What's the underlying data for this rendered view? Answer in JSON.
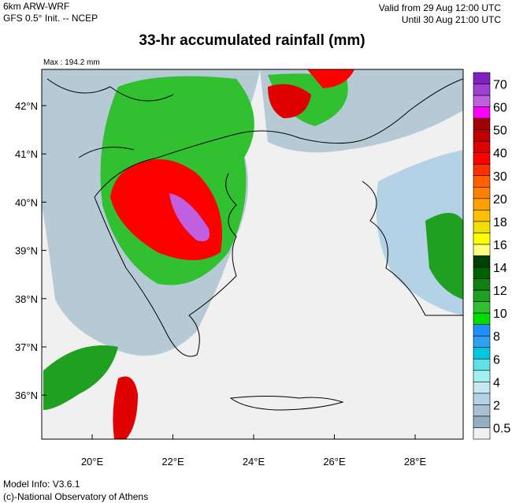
{
  "header": {
    "model": "6km ARW-WRF",
    "init": "GFS 0.5° Init. -- NCEP",
    "valid_from": "Valid from 29 Aug 12:00 UTC",
    "valid_until": "Until 30 Aug 21:00 UTC",
    "title": "33-hr accumulated rainfall (mm)",
    "max": "Max : 194.2 mm"
  },
  "map": {
    "lat_labels": [
      "42°N",
      "41°N",
      "40°N",
      "39°N",
      "38°N",
      "37°N",
      "36°N"
    ],
    "lon_labels": [
      "20°E",
      "22°E",
      "24°E",
      "26°E",
      "28°E"
    ]
  },
  "colorbar": {
    "labels": [
      "70",
      "60",
      "50",
      "40",
      "30",
      "20",
      "18",
      "16",
      "14",
      "12",
      "10",
      "8",
      "6",
      "4",
      "2",
      "0.5"
    ],
    "colors": [
      "#8020c0",
      "#a040d0",
      "#c060e0",
      "#ff00ff",
      "#a00000",
      "#c00000",
      "#e00000",
      "#ff0000",
      "#ff3000",
      "#ff6000",
      "#ff8000",
      "#ffa000",
      "#ffc000",
      "#f0e000",
      "#ffff00",
      "#ffff80",
      "#004000",
      "#006000",
      "#108010",
      "#20a020",
      "#30c030",
      "#00dd00",
      "#1e90ff",
      "#30a0f0",
      "#00c8e0",
      "#60e0e8",
      "#a0f0f0",
      "#c8e8f0",
      "#b4d2e6",
      "#a8c0d0",
      "#96aec0",
      "#f0f0f0"
    ]
  },
  "footer": {
    "model_info": "Model Info: V3.6.1",
    "credit": "(c)-National Observatory of Athens"
  }
}
